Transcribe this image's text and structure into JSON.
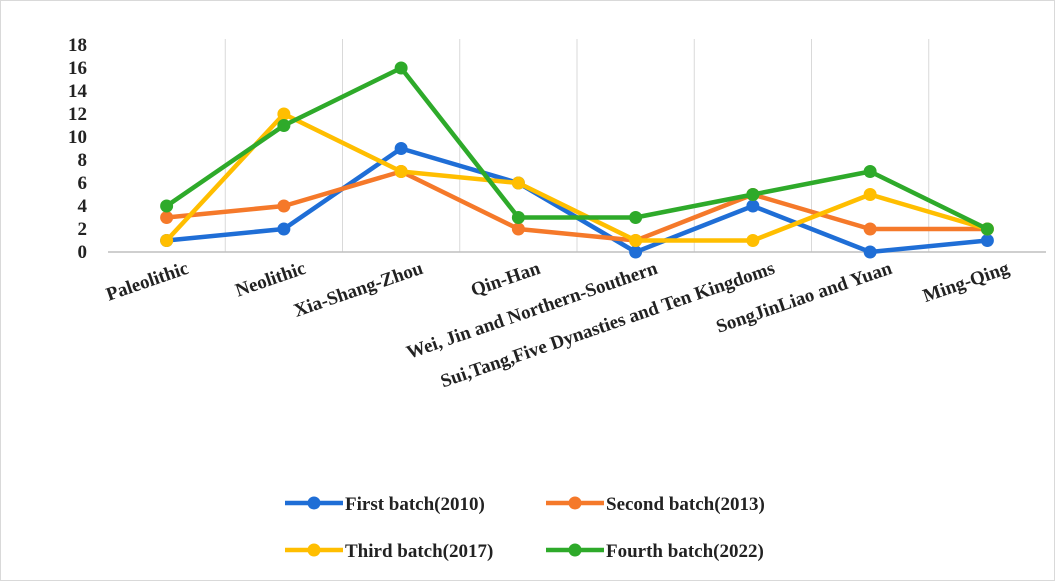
{
  "chart_data": {
    "type": "line",
    "categories": [
      "Paleolithic",
      "Neolithic",
      "Xia-Shang-Zhou",
      "Qin-Han",
      "Wei, Jin and Northern-Southern",
      "Sui,Tang,Five Dynasties and Ten Kingdoms",
      "SongJinLiao and Yuan",
      "Ming-Qing"
    ],
    "series": [
      {
        "name": "First batch(2010)",
        "color": "#1f6ed6",
        "values": [
          1,
          2,
          9,
          6,
          0,
          4,
          0,
          1
        ]
      },
      {
        "name": "Second batch(2013)",
        "color": "#f5792a",
        "values": [
          3,
          4,
          7,
          2,
          1,
          5,
          2,
          2
        ]
      },
      {
        "name": "Third batch(2017)",
        "color": "#ffbe00",
        "values": [
          1,
          12,
          7,
          6,
          1,
          1,
          5,
          2
        ]
      },
      {
        "name": "Fourth batch(2022)",
        "color": "#2eaa2a",
        "values": [
          4,
          11,
          16,
          3,
          3,
          5,
          7,
          2
        ]
      }
    ],
    "yticks": [
      0,
      2,
      4,
      6,
      8,
      10,
      12,
      14,
      16,
      18
    ],
    "ylim": [
      0,
      18
    ],
    "grid": "vertical",
    "legend_position": "bottom",
    "title": "",
    "xlabel": "",
    "ylabel": ""
  }
}
